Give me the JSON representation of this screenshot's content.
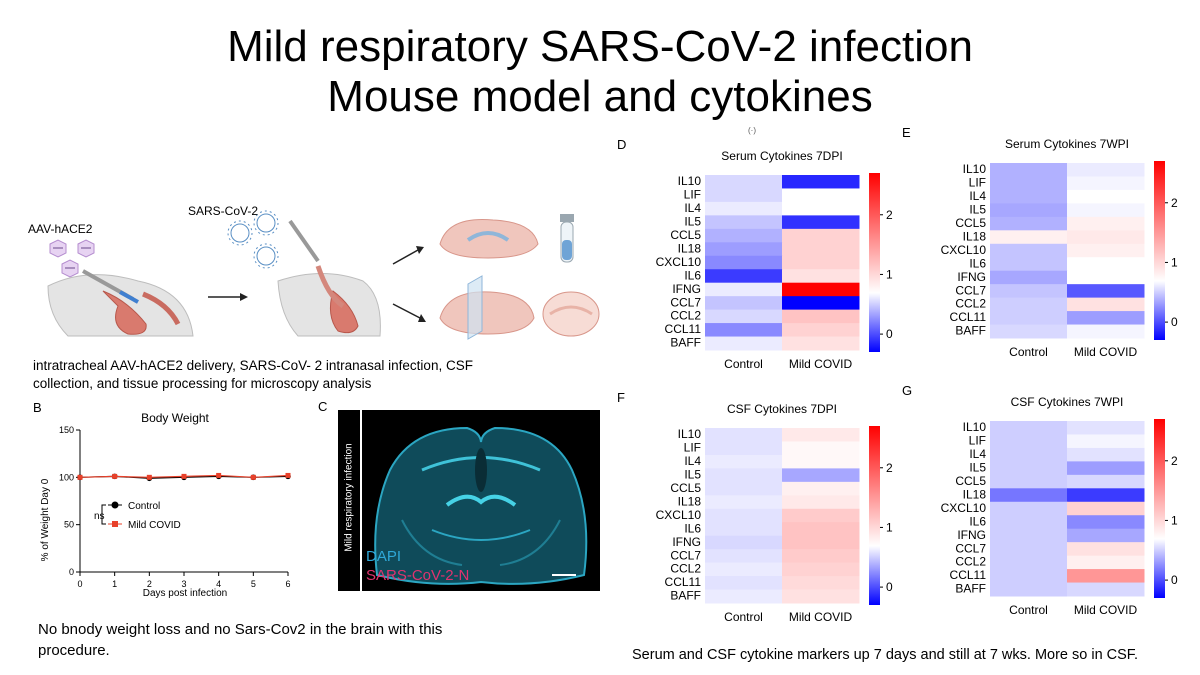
{
  "slide": {
    "title_line1": "Mild respiratory SARS-CoV-2 infection",
    "title_line2": "Mouse model and cytokines",
    "tiny_mark": "(·)"
  },
  "schematic": {
    "label_aav": "AAV-hACE2",
    "label_sars": "SARS-CoV-2",
    "caption": "intratracheal AAV-hACE2 delivery, SARS-CoV- 2 intranasal infection, CSF collection, and tissue processing for microscopy analysis"
  },
  "panel_b": {
    "letter": "B",
    "legend_ns": "ns",
    "legend": [
      "Control",
      "Mild COVID"
    ]
  },
  "panel_c": {
    "letter": "C",
    "side_label": "Mild respiratory infection",
    "stain1": "DAPI",
    "stain2": "SARS-CoV-2-N",
    "stain1_color": "#2fa8d8",
    "stain2_color": "#e0336f"
  },
  "left_note": "No bnody weight loss and no Sars-Cov2 in the brain with this procedure.",
  "right_note": "Serum and CSF cytokine markers up 7 days and still at 7 wks. More so in CSF.",
  "colors": {
    "high": "#ff0000",
    "mid": "#ffffff",
    "low": "#0000ff",
    "line_control": "#000000",
    "line_covid": "#e8412a"
  },
  "chart_data": [
    {
      "panel": "B",
      "type": "line",
      "title": "Body Weight",
      "xlabel": "Days post infection",
      "ylabel": "% of Weight Day 0",
      "xlim": [
        0,
        6
      ],
      "ylim": [
        0,
        150
      ],
      "xticks": [
        0,
        1,
        2,
        3,
        4,
        5,
        6
      ],
      "yticks": [
        0,
        50,
        100,
        150
      ],
      "x": [
        0,
        1,
        2,
        3,
        4,
        5,
        6
      ],
      "series": [
        {
          "name": "Control",
          "values": [
            100,
            101,
            99,
            100,
            101,
            100,
            101
          ]
        },
        {
          "name": "Mild COVID",
          "values": [
            100,
            101,
            100,
            101,
            102,
            100,
            102
          ]
        }
      ]
    },
    {
      "panel": "D",
      "type": "heatmap",
      "title": "Serum Cytokines 7DPI",
      "rows": [
        "IL10",
        "LIF",
        "IL4",
        "IL5",
        "CCL5",
        "IL18",
        "CXCL10",
        "IL6",
        "IFNG",
        "CCL7",
        "CCL2",
        "CCL11",
        "BAFF"
      ],
      "cols": [
        "Control",
        "Mild COVID"
      ],
      "values": [
        [
          0.8,
          -0.1
        ],
        [
          0.8,
          1.0
        ],
        [
          0.9,
          1.0
        ],
        [
          0.7,
          -0.05
        ],
        [
          0.6,
          1.3
        ],
        [
          0.5,
          1.3
        ],
        [
          0.4,
          1.3
        ],
        [
          0.0,
          1.2
        ],
        [
          0.9,
          2.7
        ],
        [
          0.7,
          -0.3
        ],
        [
          0.8,
          1.4
        ],
        [
          0.4,
          1.3
        ],
        [
          0.9,
          1.2
        ]
      ],
      "colorbar_ticks": [
        0,
        1,
        2
      ]
    },
    {
      "panel": "E",
      "type": "heatmap",
      "title": "Serum Cytokines 7WPI",
      "rows": [
        "IL10",
        "LIF",
        "IL4",
        "IL5",
        "CCL5",
        "IL18",
        "CXCL10",
        "IL6",
        "IFNG",
        "CCL7",
        "CCL2",
        "CCL11",
        "BAFF"
      ],
      "cols": [
        "Control",
        "Mild COVID"
      ],
      "values": [
        [
          0.6,
          0.9
        ],
        [
          0.6,
          0.95
        ],
        [
          0.6,
          1.0
        ],
        [
          0.55,
          0.95
        ],
        [
          0.6,
          1.1
        ],
        [
          1.1,
          1.15
        ],
        [
          0.7,
          1.1
        ],
        [
          0.7,
          1.0
        ],
        [
          0.55,
          1.0
        ],
        [
          0.7,
          0.15
        ],
        [
          0.75,
          1.2
        ],
        [
          0.75,
          0.5
        ],
        [
          0.8,
          0.95
        ]
      ],
      "colorbar_ticks": [
        0,
        1,
        2
      ]
    },
    {
      "panel": "F",
      "type": "heatmap",
      "title": "CSF Cytokines 7DPI",
      "rows": [
        "IL10",
        "LIF",
        "IL4",
        "IL5",
        "CCL5",
        "IL18",
        "CXCL10",
        "IL6",
        "IFNG",
        "CCL7",
        "CCL2",
        "CCL11",
        "BAFF"
      ],
      "cols": [
        "Control",
        "Mild COVID"
      ],
      "values": [
        [
          0.85,
          1.15
        ],
        [
          0.85,
          1.05
        ],
        [
          0.9,
          1.05
        ],
        [
          0.85,
          0.55
        ],
        [
          0.85,
          1.1
        ],
        [
          0.9,
          1.15
        ],
        [
          0.85,
          1.35
        ],
        [
          0.85,
          1.4
        ],
        [
          0.8,
          1.4
        ],
        [
          0.85,
          1.35
        ],
        [
          0.9,
          1.3
        ],
        [
          0.85,
          1.25
        ],
        [
          0.9,
          1.2
        ]
      ],
      "colorbar_ticks": [
        0,
        1,
        2
      ]
    },
    {
      "panel": "G",
      "type": "heatmap",
      "title": "CSF Cytokines 7WPI",
      "rows": [
        "IL10",
        "LIF",
        "IL4",
        "IL5",
        "CCL5",
        "IL18",
        "CXCL10",
        "IL6",
        "IFNG",
        "CCL7",
        "CCL2",
        "CCL11",
        "BAFF"
      ],
      "cols": [
        "Control",
        "Mild COVID"
      ],
      "values": [
        [
          0.75,
          0.85
        ],
        [
          0.75,
          0.95
        ],
        [
          0.75,
          0.85
        ],
        [
          0.75,
          0.5
        ],
        [
          0.75,
          0.8
        ],
        [
          0.3,
          0.0
        ],
        [
          0.75,
          1.3
        ],
        [
          0.75,
          0.4
        ],
        [
          0.75,
          0.55
        ],
        [
          0.75,
          1.2
        ],
        [
          0.75,
          1.1
        ],
        [
          0.75,
          1.7
        ],
        [
          0.75,
          0.8
        ]
      ],
      "colorbar_ticks": [
        0,
        1,
        2
      ]
    }
  ]
}
